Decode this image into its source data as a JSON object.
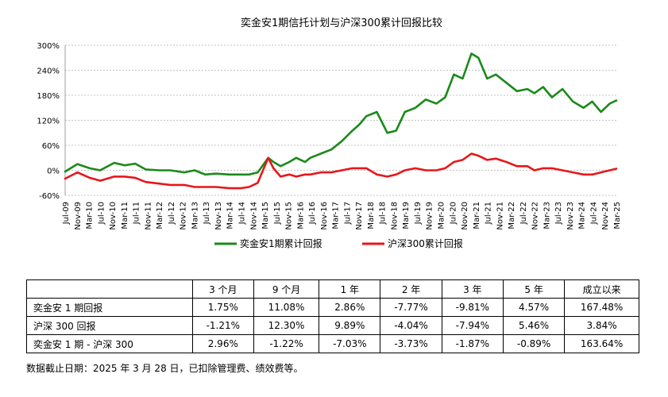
{
  "chart_data": {
    "type": "line",
    "title": "奕金安1期信托计划与沪深300累计回报比较",
    "ylim": [
      -60,
      300
    ],
    "yticks": [
      "300%",
      "240%",
      "180%",
      "120%",
      "60%",
      "0%",
      "-60%"
    ],
    "ytick_values": [
      300,
      240,
      180,
      120,
      60,
      0,
      -60
    ],
    "grid": "horizontal dashed",
    "legend_position": "bottom",
    "x_ticks": [
      "Jul-09",
      "Nov-09",
      "Mar-10",
      "Jul-10",
      "Nov-10",
      "Mar-11",
      "Jul-11",
      "Nov-11",
      "Mar-12",
      "Jul-12",
      "Nov-12",
      "Mar-13",
      "Jul-13",
      "Nov-13",
      "Mar-14",
      "Jul-14",
      "Nov-14",
      "Mar-15",
      "Jul-15",
      "Nov-15",
      "Mar-16",
      "Jul-16",
      "Nov-16",
      "Mar-17",
      "Jul-17",
      "Nov-17",
      "Mar-18",
      "Jul-18",
      "Nov-18",
      "Mar-19",
      "Jul-19",
      "Nov-19",
      "Mar-20",
      "Jul-20",
      "Nov-20",
      "Mar-21",
      "Jul-21",
      "Nov-21",
      "Mar-22",
      "Jul-22",
      "Nov-22",
      "Mar-23",
      "Jul-23",
      "Nov-23",
      "Mar-24",
      "Jul-24",
      "Nov-24",
      "Mar-25"
    ],
    "x": [
      2009.5,
      2009.85,
      2010.2,
      2010.5,
      2010.9,
      2011.2,
      2011.5,
      2011.8,
      2012.2,
      2012.5,
      2012.9,
      2013.2,
      2013.5,
      2013.8,
      2014.2,
      2014.5,
      2014.75,
      2015.0,
      2015.3,
      2015.45,
      2015.65,
      2015.9,
      2016.1,
      2016.35,
      2016.5,
      2016.8,
      2017.1,
      2017.4,
      2017.7,
      2017.9,
      2018.1,
      2018.4,
      2018.7,
      2018.95,
      2019.2,
      2019.5,
      2019.8,
      2020.1,
      2020.35,
      2020.6,
      2020.85,
      2021.1,
      2021.3,
      2021.55,
      2021.8,
      2022.1,
      2022.4,
      2022.7,
      2022.9,
      2023.15,
      2023.4,
      2023.7,
      2024.0,
      2024.3,
      2024.55,
      2024.8,
      2025.05,
      2025.24
    ],
    "series": [
      {
        "name": "奕金安1期累计回报",
        "color": "#1a8a1a",
        "values": [
          -3,
          15,
          5,
          0,
          18,
          12,
          16,
          2,
          0,
          0,
          -5,
          0,
          -10,
          -8,
          -10,
          -10,
          -10,
          -5,
          30,
          20,
          10,
          20,
          30,
          20,
          30,
          40,
          50,
          70,
          95,
          110,
          130,
          140,
          90,
          95,
          140,
          150,
          170,
          160,
          175,
          230,
          220,
          280,
          270,
          220,
          230,
          210,
          190,
          195,
          185,
          200,
          175,
          195,
          165,
          150,
          165,
          140,
          160,
          167.48
        ]
      },
      {
        "name": "沪深300累计回报",
        "color": "#e8161a",
        "values": [
          -20,
          -5,
          -18,
          -25,
          -15,
          -15,
          -18,
          -28,
          -32,
          -35,
          -35,
          -40,
          -40,
          -40,
          -43,
          -43,
          -40,
          -30,
          30,
          5,
          -15,
          -10,
          -15,
          -10,
          -10,
          -5,
          -5,
          0,
          5,
          5,
          5,
          -10,
          -15,
          -10,
          0,
          5,
          0,
          0,
          5,
          20,
          25,
          40,
          35,
          25,
          28,
          20,
          10,
          10,
          0,
          5,
          5,
          0,
          -5,
          -10,
          -10,
          -5,
          0,
          3.84
        ]
      }
    ]
  },
  "table": {
    "headers": [
      "",
      "3 个月",
      "9 个月",
      "1 年",
      "2 年",
      "3 年",
      "5 年",
      "成立以来"
    ],
    "rows": [
      {
        "label": "奕金安 1 期回报",
        "values": [
          "1.75%",
          "11.08%",
          "2.86%",
          "-7.77%",
          "-9.81%",
          "4.57%",
          "167.48%"
        ]
      },
      {
        "label": "沪深 300 回报",
        "values": [
          "-1.21%",
          "12.30%",
          "9.89%",
          "-4.04%",
          "-7.94%",
          "5.46%",
          "3.84%"
        ]
      },
      {
        "label": "奕金安 1 期 - 沪深 300",
        "values": [
          "2.96%",
          "-1.22%",
          "-7.03%",
          "-3.73%",
          "-1.87%",
          "-0.89%",
          "163.64%"
        ]
      }
    ]
  },
  "footnote": "数据截止日期：2025 年 3 月 28 日，已扣除管理费、绩效费等。"
}
